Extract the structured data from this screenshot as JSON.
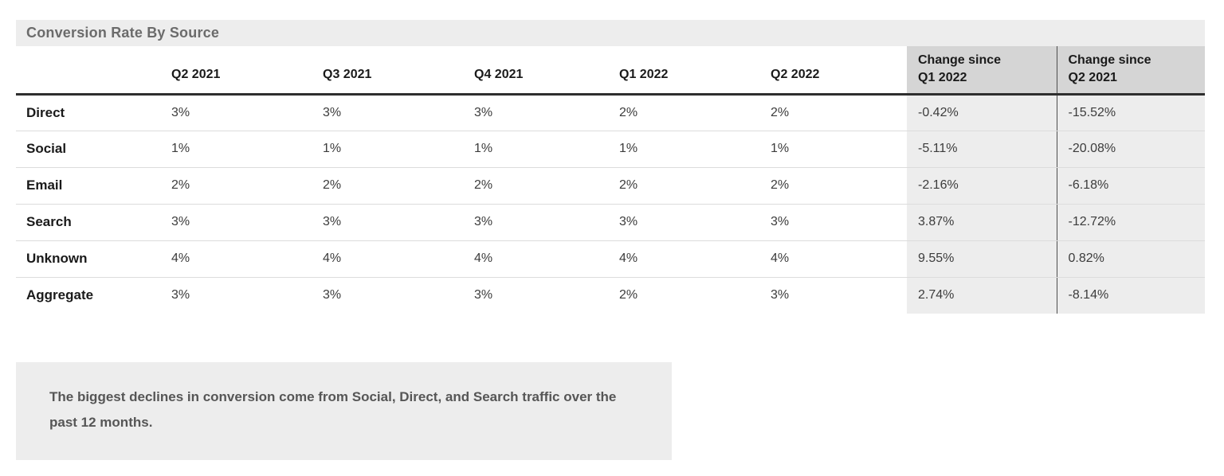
{
  "chart_data": {
    "type": "table",
    "title": "Conversion Rate By Source",
    "quarter_columns": [
      "Q2 2021",
      "Q3 2021",
      "Q4 2021",
      "Q1 2022",
      "Q2 2022"
    ],
    "change_columns": [
      {
        "line1": "Change since",
        "line2": "Q1 2022"
      },
      {
        "line1": "Change since",
        "line2": "Q2 2021"
      }
    ],
    "rows": [
      {
        "label": "Direct",
        "values": [
          "3%",
          "3%",
          "3%",
          "2%",
          "2%"
        ],
        "changes": [
          "-0.42%",
          "-15.52%"
        ]
      },
      {
        "label": "Social",
        "values": [
          "1%",
          "1%",
          "1%",
          "1%",
          "1%"
        ],
        "changes": [
          "-5.11%",
          "-20.08%"
        ]
      },
      {
        "label": "Email",
        "values": [
          "2%",
          "2%",
          "2%",
          "2%",
          "2%"
        ],
        "changes": [
          "-2.16%",
          "-6.18%"
        ]
      },
      {
        "label": "Search",
        "values": [
          "3%",
          "3%",
          "3%",
          "3%",
          "3%"
        ],
        "changes": [
          "3.87%",
          "-12.72%"
        ]
      },
      {
        "label": "Unknown",
        "values": [
          "4%",
          "4%",
          "4%",
          "4%",
          "4%"
        ],
        "changes": [
          "9.55%",
          "0.82%"
        ]
      },
      {
        "label": "Aggregate",
        "values": [
          "3%",
          "3%",
          "3%",
          "2%",
          "3%"
        ],
        "changes": [
          "2.74%",
          "-8.14%"
        ]
      }
    ]
  },
  "note": {
    "text": "The biggest declines in conversion come from Social, Direct, and Search traffic over the past 12 months."
  },
  "colors": {
    "panel_gray": "#ededed",
    "change_header_gray": "#d5d5d5",
    "change_cell_gray": "#ededed",
    "header_rule": "#2e2e2e",
    "row_divider": "#dcdcdc",
    "column_divider": "#4d4d4d",
    "title_text": "#6b6b6b",
    "note_text": "#565656"
  }
}
